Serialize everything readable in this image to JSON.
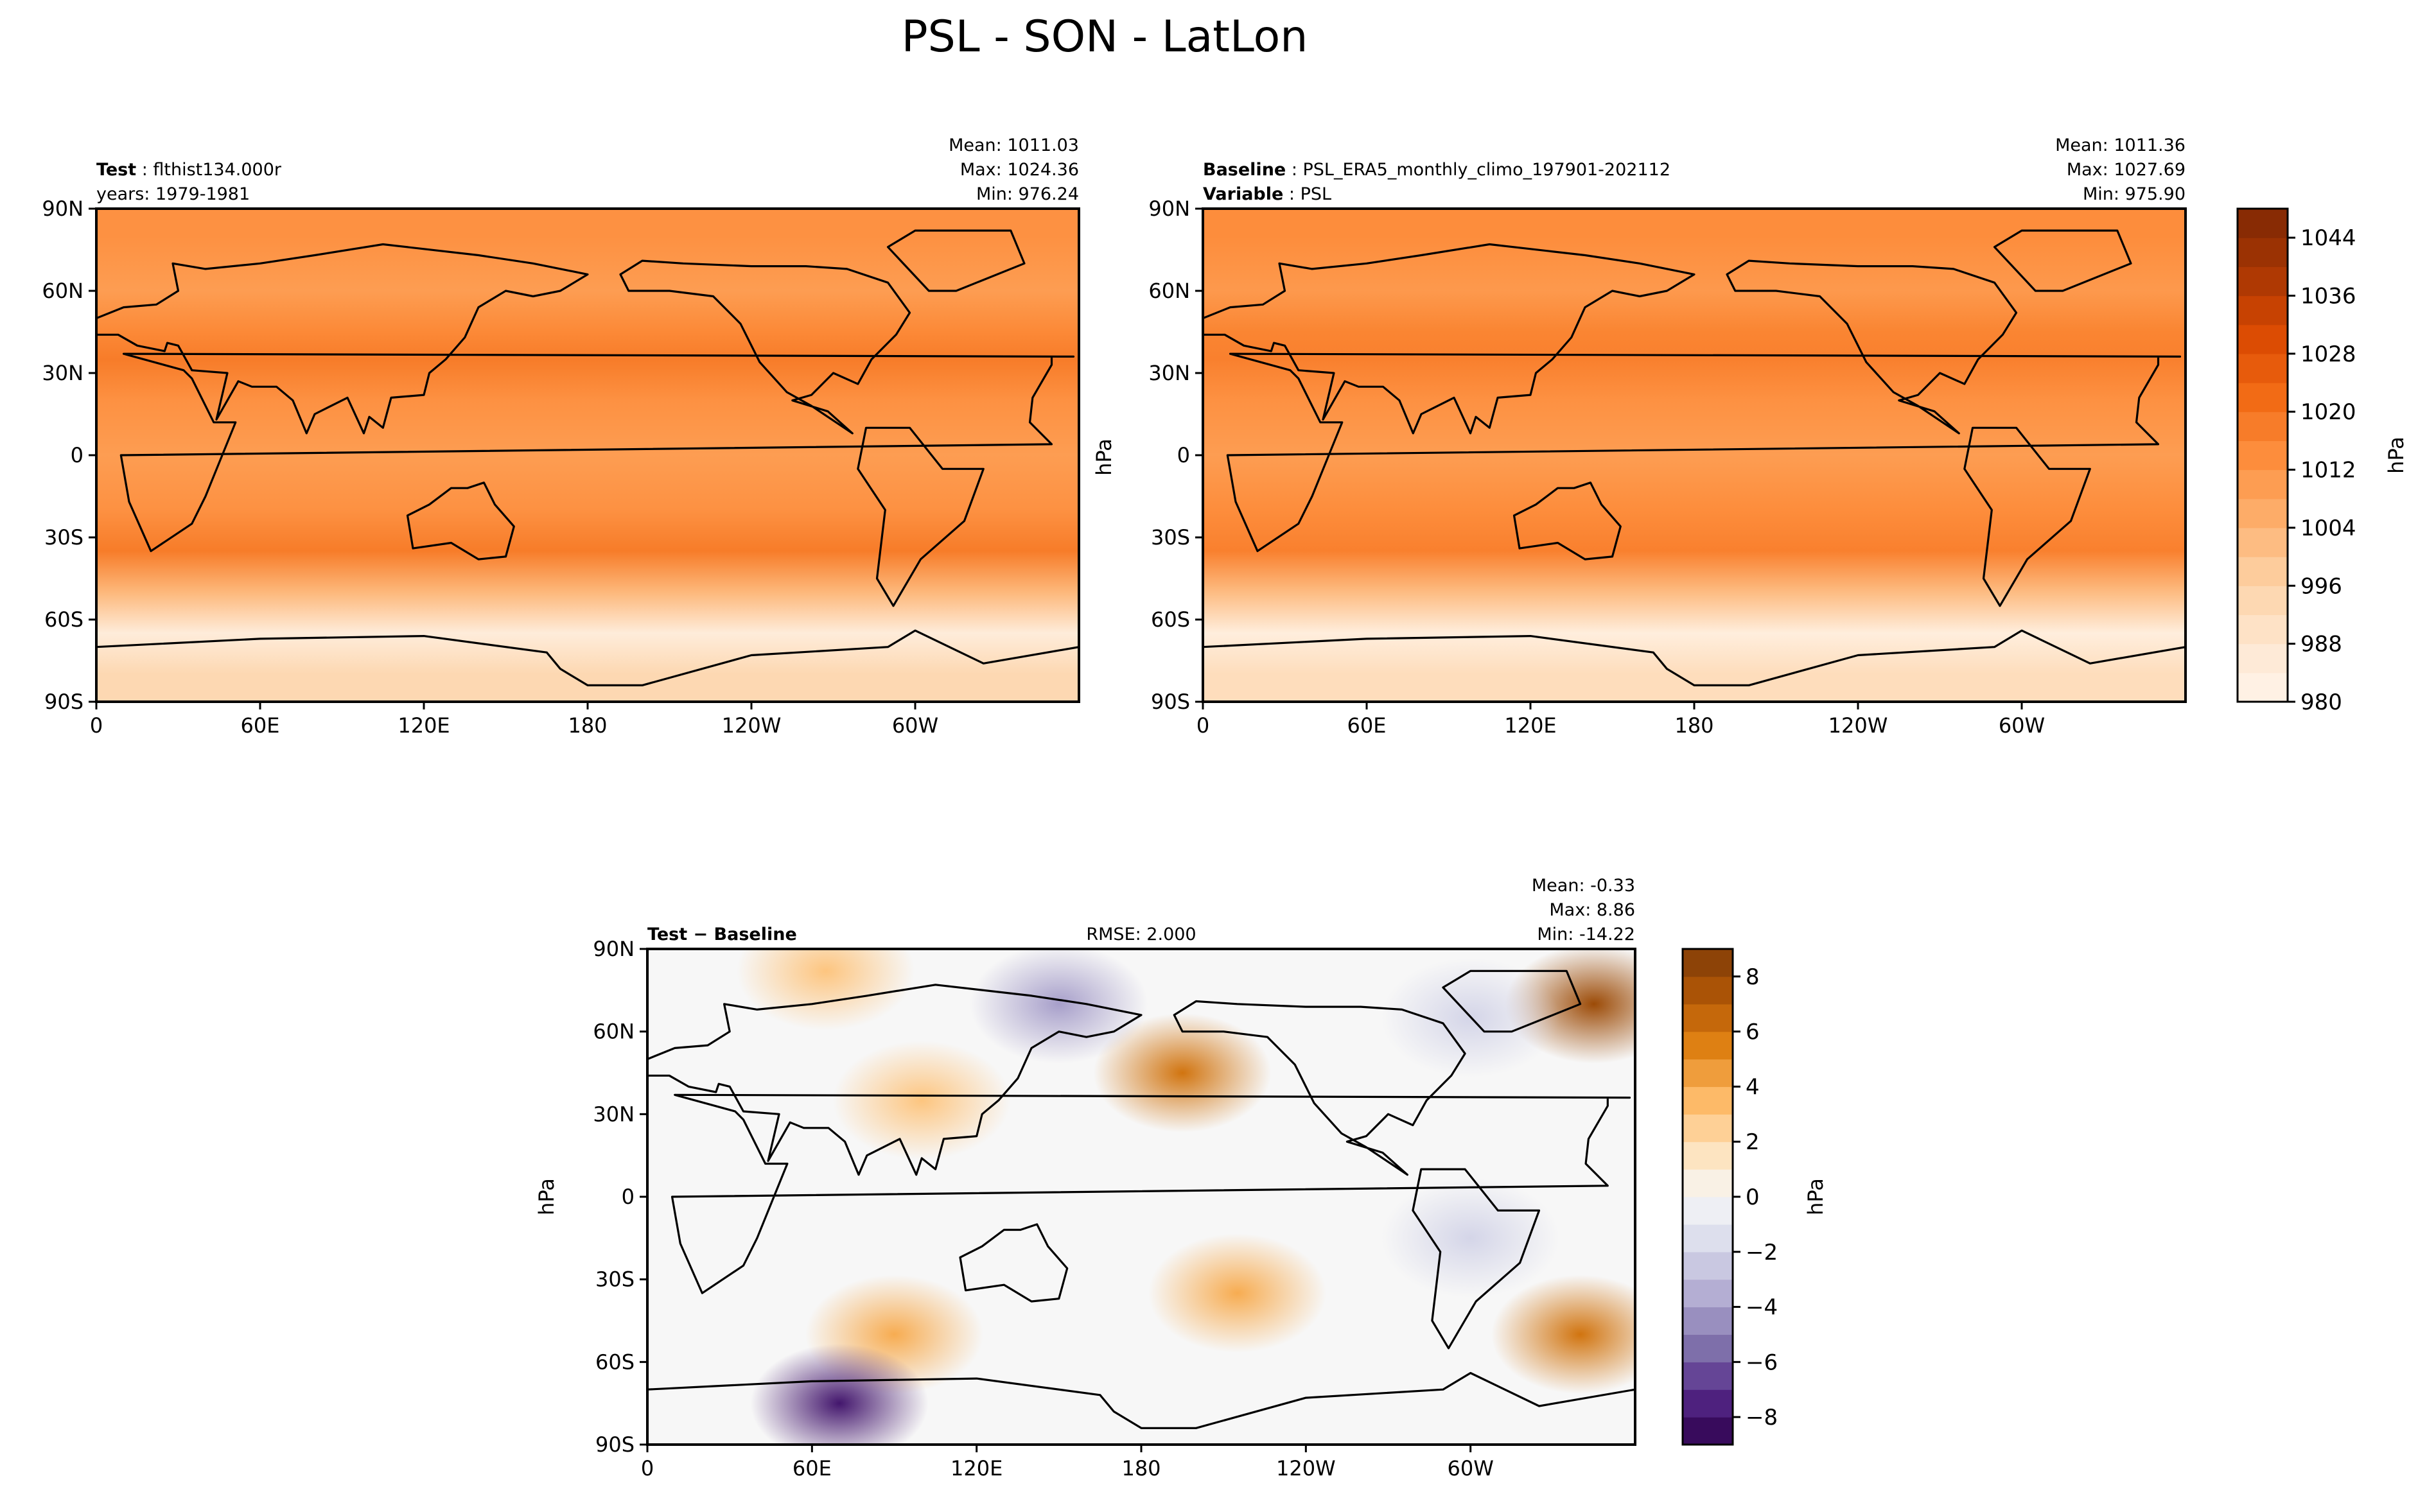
{
  "title": "PSL - SON - LatLon",
  "chart_data": [
    {
      "type": "heatmap",
      "panel": "test",
      "label": "Test",
      "label_value": "flthist134.000r",
      "label_line2": "years: 1979-1981",
      "stats": {
        "mean": "Mean: 1011.03",
        "max": "Max: 1024.36",
        "min": "Min: 976.24"
      },
      "xlabel": "",
      "ylabel": "",
      "x_ticks": [
        "0",
        "60E",
        "120E",
        "180",
        "120W",
        "60W"
      ],
      "y_ticks": [
        "90N",
        "60N",
        "30N",
        "0",
        "30S",
        "60S",
        "90S"
      ],
      "xlim": [
        0,
        360
      ],
      "ylim": [
        -90,
        90
      ],
      "colormap": "Oranges",
      "zones": [
        {
          "lat": 80,
          "value": 1013
        },
        {
          "lat": 60,
          "value": 1010
        },
        {
          "lat": 45,
          "value": 1015
        },
        {
          "lat": 35,
          "value": 1018
        },
        {
          "lat": 20,
          "value": 1013
        },
        {
          "lat": 0,
          "value": 1010
        },
        {
          "lat": -20,
          "value": 1013
        },
        {
          "lat": -35,
          "value": 1018
        },
        {
          "lat": -50,
          "value": 1003
        },
        {
          "lat": -65,
          "value": 985
        },
        {
          "lat": -80,
          "value": 994
        }
      ]
    },
    {
      "type": "heatmap",
      "panel": "baseline",
      "label": "Baseline",
      "label_value": "PSL_ERA5_monthly_climo_197901-202112",
      "label2": "Variable",
      "label2_value": "PSL",
      "stats": {
        "mean": "Mean: 1011.36",
        "max": "Max: 1027.69",
        "min": "Min: 975.90"
      },
      "xlabel": "",
      "ylabel": "",
      "x_ticks": [
        "0",
        "60E",
        "120E",
        "180",
        "120W",
        "60W"
      ],
      "y_ticks": [
        "90N",
        "60N",
        "30N",
        "0",
        "30S",
        "60S",
        "90S"
      ],
      "xlim": [
        0,
        360
      ],
      "ylim": [
        -90,
        90
      ],
      "colormap": "Oranges",
      "zones": [
        {
          "lat": 80,
          "value": 1014
        },
        {
          "lat": 60,
          "value": 1011
        },
        {
          "lat": 45,
          "value": 1016
        },
        {
          "lat": 35,
          "value": 1017
        },
        {
          "lat": 20,
          "value": 1013
        },
        {
          "lat": 0,
          "value": 1010
        },
        {
          "lat": -20,
          "value": 1014
        },
        {
          "lat": -35,
          "value": 1017
        },
        {
          "lat": -50,
          "value": 1002
        },
        {
          "lat": -65,
          "value": 984
        },
        {
          "lat": -80,
          "value": 992
        }
      ],
      "colorbar": {
        "label": "hPa",
        "min": 980,
        "max": 1048,
        "levels": 17,
        "ticks": [
          "980",
          "988",
          "996",
          "1004",
          "1012",
          "1020",
          "1028",
          "1036",
          "1044"
        ],
        "tick_values": [
          980,
          988,
          996,
          1004,
          1012,
          1020,
          1028,
          1036,
          1044
        ]
      }
    },
    {
      "type": "heatmap",
      "panel": "difference",
      "label": "Test − Baseline",
      "rmse": "RMSE: 2.000",
      "stats": {
        "mean": "Mean: -0.33",
        "max": "Max:  8.86",
        "min": "Min: -14.22"
      },
      "xlabel": "",
      "ylabel": "",
      "x_ticks": [
        "0",
        "60E",
        "120E",
        "180",
        "120W",
        "60W"
      ],
      "y_ticks": [
        "90N",
        "60N",
        "30N",
        "0",
        "30S",
        "60S",
        "90S"
      ],
      "xlim": [
        0,
        360
      ],
      "ylim": [
        -90,
        90
      ],
      "colormap": "PuOr_r",
      "anomalies": [
        {
          "lon": 195,
          "lat": 45,
          "value": 6
        },
        {
          "lon": 65,
          "lat": 82,
          "value": 3
        },
        {
          "lon": 345,
          "lat": 70,
          "value": 8
        },
        {
          "lon": 100,
          "lat": 35,
          "value": 3
        },
        {
          "lon": 215,
          "lat": -35,
          "value": 4
        },
        {
          "lon": 90,
          "lat": -50,
          "value": 4
        },
        {
          "lon": 340,
          "lat": -50,
          "value": 6
        },
        {
          "lon": 70,
          "lat": -75,
          "value": -8
        },
        {
          "lon": 150,
          "lat": 70,
          "value": -4
        },
        {
          "lon": 300,
          "lat": 65,
          "value": -2
        },
        {
          "lon": 300,
          "lat": -15,
          "value": -2
        }
      ],
      "colorbar": {
        "label": "hPa",
        "min": -9,
        "max": 9,
        "levels": 18,
        "ticks": [
          "−8",
          "−6",
          "−4",
          "−2",
          "0",
          "2",
          "4",
          "6",
          "8"
        ],
        "tick_values": [
          -8,
          -6,
          -4,
          -2,
          0,
          2,
          4,
          6,
          8
        ]
      }
    }
  ]
}
